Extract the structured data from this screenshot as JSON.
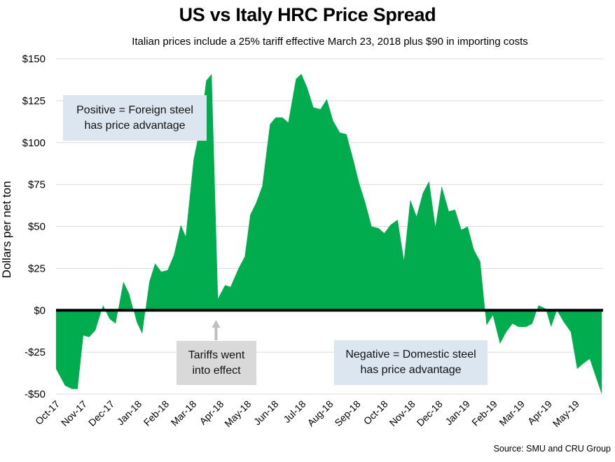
{
  "chart_data": {
    "type": "area",
    "title": "US vs Italy HRC Price Spread",
    "subtitle": "Italian prices include a 25% tariff effective March 23, 2018 plus $90 in importing costs",
    "xlabel": "",
    "ylabel": "Dollars per net ton",
    "ylim": [
      -50,
      150
    ],
    "yticks": [
      150,
      125,
      100,
      75,
      50,
      25,
      0,
      -25,
      -50
    ],
    "ytick_labels": [
      "$150",
      "$125",
      "$100",
      "$75",
      "$50",
      "$25",
      "$0",
      "-$25",
      "-$50"
    ],
    "xtick_labels": [
      "Oct-17",
      "Nov-17",
      "Dec-17",
      "Jan-18",
      "Feb-18",
      "Mar-18",
      "Apr-18",
      "May-18",
      "Jun-18",
      "Jul-18",
      "Aug-18",
      "Sep-18",
      "Oct-18",
      "Nov-18",
      "Dec-18",
      "Jan-19",
      "Feb-19",
      "Mar-19",
      "Apr-19",
      "May-19"
    ],
    "x_months_range": [
      0,
      19.9
    ],
    "grid": true,
    "fill_color": "#00ac4e",
    "zero_line_color": "#000000",
    "series": [
      {
        "name": "US vs Italy HRC spread",
        "x_months": [
          0,
          0.33,
          0.59,
          0.79,
          1.0,
          1.21,
          1.44,
          1.72,
          1.95,
          2.18,
          2.46,
          2.67,
          2.95,
          3.15,
          3.41,
          3.62,
          3.85,
          4.08,
          4.31,
          4.56,
          4.74,
          5.03,
          5.28,
          5.49,
          5.69,
          5.92,
          6.18,
          6.38,
          6.67,
          6.9,
          7.1,
          7.31,
          7.54,
          7.82,
          8.03,
          8.28,
          8.49,
          8.77,
          8.97,
          9.18,
          9.41,
          9.67,
          9.9,
          10.13,
          10.38,
          10.62,
          10.85,
          11.08,
          11.31,
          11.54,
          11.79,
          12.0,
          12.23,
          12.49,
          12.72,
          12.95,
          13.18,
          13.41,
          13.64,
          13.87,
          14.1,
          14.36,
          14.59,
          14.82,
          15.05,
          15.28,
          15.51,
          15.74,
          15.97,
          16.23,
          16.46,
          16.69,
          16.92,
          17.18,
          17.41,
          17.64,
          17.9,
          18.1,
          18.31,
          18.56,
          18.82,
          19.05,
          19.26,
          19.51,
          19.95
        ],
        "values": [
          -35,
          -45,
          -47,
          -47,
          -15,
          -16,
          -12,
          3,
          -5,
          -8,
          17,
          10,
          -7,
          -14,
          17,
          28,
          23,
          24,
          33,
          51,
          44,
          90,
          110,
          137,
          141,
          7,
          15,
          14,
          25,
          32,
          57,
          64,
          74,
          111,
          115,
          115,
          112,
          138,
          141,
          133,
          121,
          120,
          126,
          113,
          106,
          105,
          91,
          76,
          64,
          50,
          49,
          46,
          51,
          54,
          30,
          66,
          56,
          70,
          77,
          50,
          74,
          59,
          60,
          48,
          50,
          36,
          29,
          -9,
          -3,
          -20,
          -13,
          -8,
          -10,
          -10,
          -8,
          3,
          1,
          -10,
          0,
          -7,
          -13,
          -35,
          -32,
          -29,
          -50
        ]
      }
    ],
    "annotations": [
      {
        "text_line1": "Positive = Foreign steel",
        "text_line2": "has price advantage",
        "style": "blue"
      },
      {
        "text_line1": "Tariffs went",
        "text_line2": "into effect",
        "style": "gray",
        "arrow": "up",
        "arrow_at_month": 5.85
      },
      {
        "text_line1": "Negative = Domestic steel",
        "text_line2": "has price advantage",
        "style": "blue"
      }
    ],
    "source": "Source: SMU and CRU Group"
  }
}
